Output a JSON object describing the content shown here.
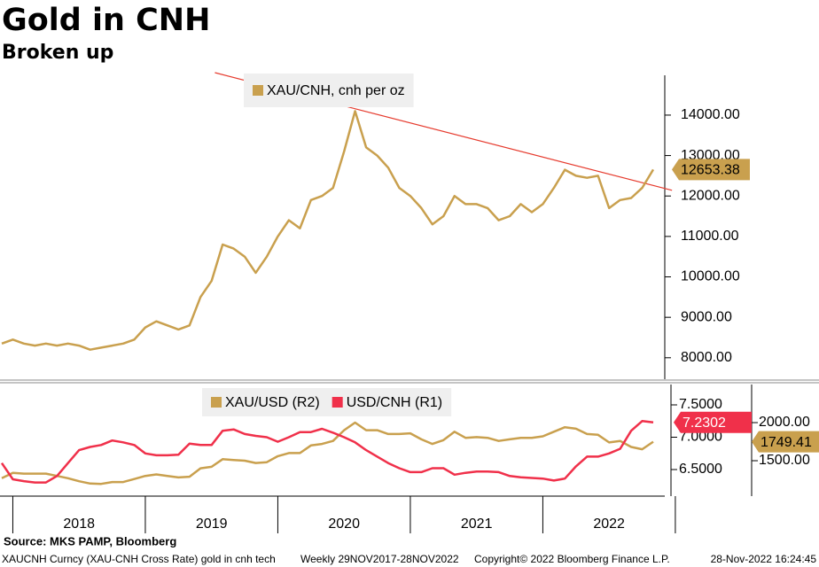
{
  "chart_data": [
    {
      "type": "line",
      "title": "Gold in CNH",
      "subtitle": "Broken up",
      "categories": [
        null,
        null,
        null,
        null,
        null,
        null,
        null,
        null,
        null,
        null,
        null,
        null,
        null,
        null,
        null,
        null,
        null,
        null,
        null,
        null,
        null,
        null,
        null,
        null,
        null,
        null,
        null,
        null,
        null,
        null,
        null,
        null,
        null,
        null,
        null,
        null,
        null,
        null,
        null,
        null,
        null,
        null,
        null,
        null,
        null,
        null,
        null,
        null,
        null,
        null,
        null,
        null,
        null,
        null,
        null,
        null,
        null,
        null,
        null,
        null
      ],
      "series": [
        {
          "name": "XAU/CNH, cnh per oz",
          "color": "#c9a04e",
          "values": [
            8350,
            8450,
            8350,
            8300,
            8350,
            8300,
            8350,
            8300,
            8200,
            8250,
            8300,
            8350,
            8450,
            8750,
            8900,
            8800,
            8700,
            8800,
            9500,
            9900,
            10800,
            10700,
            10500,
            10100,
            10500,
            11000,
            11400,
            11200,
            11900,
            12000,
            12200,
            13100,
            14100,
            13200,
            13000,
            12700,
            12200,
            12000,
            11700,
            11300,
            11500,
            12000,
            11800,
            11800,
            11700,
            11400,
            11500,
            11800,
            11600,
            11800,
            12200,
            12650,
            12500,
            12450,
            12500,
            11700,
            11900,
            11950,
            12200,
            12653.38
          ]
        }
      ],
      "trend_line": {
        "color": "#e63b2e",
        "x": [
          19.3,
          60.7
        ],
        "values": [
          15050,
          12140
        ]
      },
      "ylim": [
        7470,
        15050
      ],
      "yticks": [
        {
          "value": 8000,
          "label": "8000.00"
        },
        {
          "value": 9000,
          "label": "9000.00"
        },
        {
          "value": 10000,
          "label": "10000.00"
        },
        {
          "value": 11000,
          "label": "11000.00"
        },
        {
          "value": 12000,
          "label": "12000.00"
        },
        {
          "value": 13000,
          "label": "13000.00"
        },
        {
          "value": 14000,
          "label": "14000.00"
        }
      ]
    },
    {
      "type": "line",
      "categories": [
        null,
        null,
        null,
        null,
        null,
        null,
        null,
        "2018",
        null,
        null,
        null,
        null,
        null,
        null,
        null,
        null,
        null,
        null,
        null,
        "2019",
        null,
        null,
        null,
        null,
        null,
        null,
        null,
        null,
        null,
        null,
        null,
        "2020",
        null,
        null,
        null,
        null,
        null,
        null,
        null,
        null,
        null,
        null,
        null,
        "2021",
        null,
        null,
        null,
        null,
        null,
        null,
        null,
        null,
        null,
        null,
        null,
        "2022",
        null,
        null,
        null,
        null
      ],
      "series": [
        {
          "name": "XAU/USD (R2)",
          "color": "#c9a04e",
          "axis": "y2",
          "values": [
            1270,
            1340,
            1330,
            1330,
            1330,
            1300,
            1270,
            1230,
            1200,
            1195,
            1220,
            1220,
            1260,
            1300,
            1320,
            1300,
            1280,
            1290,
            1400,
            1420,
            1520,
            1510,
            1500,
            1470,
            1480,
            1560,
            1600,
            1600,
            1700,
            1720,
            1760,
            1900,
            2000,
            1900,
            1900,
            1850,
            1850,
            1860,
            1780,
            1720,
            1770,
            1880,
            1800,
            1810,
            1800,
            1760,
            1780,
            1800,
            1800,
            1820,
            1880,
            1940,
            1920,
            1850,
            1840,
            1740,
            1760,
            1680,
            1650,
            1749.41
          ]
        },
        {
          "name": "USD/CNH (R1)",
          "color": "#f0304a",
          "values": [
            6.6,
            6.35,
            6.32,
            6.3,
            6.3,
            6.4,
            6.6,
            6.8,
            6.85,
            6.88,
            6.95,
            6.92,
            6.88,
            6.75,
            6.72,
            6.72,
            6.73,
            6.9,
            6.88,
            6.88,
            7.1,
            7.12,
            7.05,
            7.02,
            7.0,
            6.93,
            7.0,
            7.08,
            7.08,
            7.13,
            7.07,
            7.0,
            6.92,
            6.8,
            6.7,
            6.6,
            6.52,
            6.46,
            6.46,
            6.52,
            6.52,
            6.42,
            6.45,
            6.47,
            6.47,
            6.46,
            6.4,
            6.38,
            6.37,
            6.36,
            6.33,
            6.36,
            6.55,
            6.7,
            6.7,
            6.75,
            6.82,
            7.1,
            7.25,
            7.2302
          ]
        }
      ],
      "ylim": [
        6.089,
        7.829
      ],
      "yticks": [
        {
          "value": 6.5,
          "label": "6.5000"
        },
        {
          "value": 7,
          "label": "7.0000"
        },
        {
          "value": 7.5,
          "label": "7.5000"
        }
      ],
      "y2lim": [
        1035,
        2512
      ],
      "y2ticks": [
        {
          "value": 1500,
          "label": "1500.00"
        },
        {
          "value": 2000,
          "label": "2000.00"
        }
      ]
    }
  ],
  "footer": {
    "source": "Source: MKS PAMP, Bloomberg",
    "description": "XAUCNH Curncy (XAU-CNH Cross Rate) gold in cnh tech",
    "period": "Weekly 29NOV2017-28NOV2022",
    "copyright": "Copyright© 2022 Bloomberg Finance L.P.",
    "timestamp": "28-Nov-2022 16:24:45"
  }
}
